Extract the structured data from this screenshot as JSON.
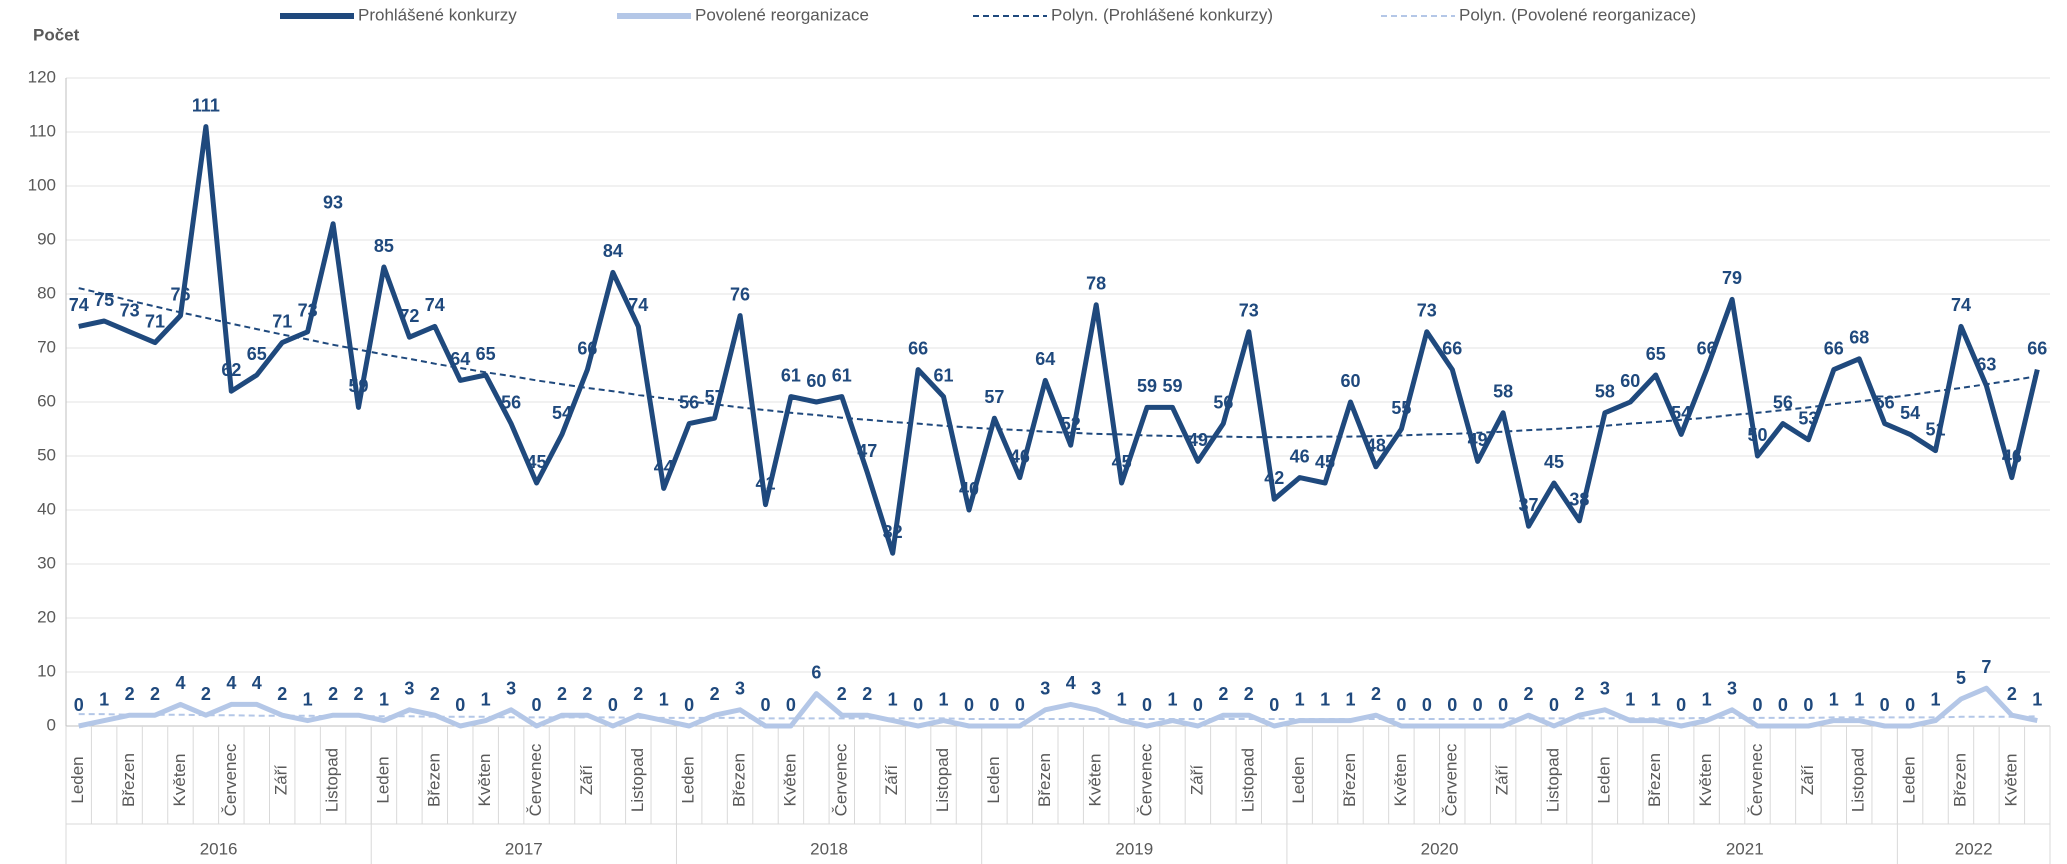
{
  "chart_data": {
    "type": "line",
    "y_label": "Počet",
    "categories": [
      "Leden",
      null,
      "Březen",
      null,
      "Květen",
      null,
      "Červenec",
      null,
      "Září",
      null,
      "Listopad",
      null,
      "Leden",
      null,
      "Březen",
      null,
      "Květen",
      null,
      "Červenec",
      null,
      "Září",
      null,
      "Listopad",
      null,
      "Leden",
      null,
      "Březen",
      null,
      "Květen",
      null,
      "Červenec",
      null,
      "Září",
      null,
      "Listopad",
      null,
      "Leden",
      null,
      "Březen",
      null,
      "Květen",
      null,
      "Červenec",
      null,
      "Září",
      null,
      "Listopad",
      null,
      "Leden",
      null,
      "Březen",
      null,
      "Květen",
      null,
      "Červenec",
      null,
      "Září",
      null,
      "Listopad",
      null,
      "Leden",
      null,
      "Březen",
      null,
      "Květen",
      null,
      "Červenec",
      null,
      "Září",
      null,
      "Listopad",
      null,
      "Leden",
      null,
      "Březen",
      null,
      "Květen",
      null
    ],
    "years": [
      "2016",
      "2017",
      "2018",
      "2019",
      "2020",
      "2021",
      "2022"
    ],
    "series": [
      {
        "name": "Prohlášené konkurzy",
        "color": "#1f497d",
        "dashed": false,
        "data_labels": true,
        "values": [
          74,
          75,
          73,
          71,
          76,
          111,
          62,
          65,
          71,
          73,
          93,
          59,
          85,
          72,
          74,
          64,
          65,
          56,
          45,
          54,
          66,
          84,
          74,
          44,
          56,
          57,
          76,
          41,
          61,
          60,
          61,
          47,
          32,
          66,
          61,
          40,
          57,
          46,
          64,
          52,
          78,
          45,
          59,
          59,
          49,
          56,
          73,
          42,
          46,
          45,
          60,
          48,
          55,
          73,
          66,
          49,
          58,
          37,
          45,
          38,
          58,
          60,
          65,
          54,
          66,
          79,
          50,
          56,
          53,
          66,
          68,
          56,
          54,
          51,
          74,
          63,
          46,
          66
        ]
      },
      {
        "name": "Povolené reorganizace",
        "color": "#b4c7e7",
        "dashed": false,
        "data_labels": true,
        "values": [
          0,
          1,
          2,
          2,
          4,
          2,
          4,
          4,
          2,
          1,
          2,
          2,
          1,
          3,
          2,
          0,
          1,
          3,
          0,
          2,
          2,
          0,
          2,
          1,
          0,
          2,
          3,
          0,
          0,
          6,
          2,
          2,
          1,
          0,
          1,
          0,
          0,
          0,
          3,
          4,
          3,
          1,
          0,
          1,
          0,
          2,
          2,
          0,
          1,
          1,
          1,
          2,
          0,
          0,
          0,
          0,
          0,
          2,
          0,
          2,
          3,
          1,
          1,
          0,
          1,
          3,
          0,
          0,
          0,
          1,
          1,
          0,
          0,
          1,
          5,
          7,
          2,
          1
        ]
      },
      {
        "name": "Polyn. (Prohlášené konkurzy)",
        "color": "#1f497d",
        "dashed": true,
        "data_labels": false,
        "values": [
          81.1,
          80.0,
          78.8,
          77.7,
          76.6,
          75.6,
          74.5,
          73.5,
          72.5,
          71.6,
          70.6,
          69.7,
          68.8,
          68.0,
          67.1,
          66.3,
          65.5,
          64.8,
          64.0,
          63.3,
          62.6,
          62.0,
          61.3,
          60.7,
          60.1,
          59.6,
          59.0,
          58.5,
          58.0,
          57.6,
          57.1,
          56.7,
          56.3,
          56.0,
          55.6,
          55.3,
          55.0,
          54.8,
          54.5,
          54.3,
          54.1,
          54.0,
          53.8,
          53.7,
          53.6,
          53.6,
          53.5,
          53.5,
          53.5,
          53.6,
          53.6,
          53.7,
          53.8,
          54.0,
          54.1,
          54.3,
          54.5,
          54.8,
          55.0,
          55.3,
          55.6,
          56.0,
          56.3,
          56.7,
          57.1,
          57.6,
          58.0,
          58.5,
          59.0,
          59.6,
          60.1,
          60.7,
          61.3,
          62.0,
          62.6,
          63.3,
          64.0,
          64.8
        ]
      },
      {
        "name": "Polyn. (Povolené reorganizace)",
        "color": "#b4c7e7",
        "dashed": true,
        "data_labels": false,
        "values": [
          2.2,
          2.2,
          2.1,
          2.1,
          2.1,
          2.0,
          2.0,
          1.9,
          1.9,
          1.9,
          1.8,
          1.8,
          1.8,
          1.8,
          1.7,
          1.7,
          1.7,
          1.6,
          1.6,
          1.6,
          1.6,
          1.6,
          1.5,
          1.5,
          1.5,
          1.5,
          1.5,
          1.4,
          1.4,
          1.4,
          1.4,
          1.4,
          1.4,
          1.4,
          1.4,
          1.3,
          1.3,
          1.3,
          1.3,
          1.3,
          1.3,
          1.3,
          1.3,
          1.3,
          1.3,
          1.3,
          1.3,
          1.3,
          1.3,
          1.3,
          1.3,
          1.3,
          1.3,
          1.3,
          1.3,
          1.3,
          1.4,
          1.4,
          1.4,
          1.4,
          1.4,
          1.4,
          1.4,
          1.4,
          1.5,
          1.5,
          1.5,
          1.5,
          1.5,
          1.6,
          1.6,
          1.6,
          1.6,
          1.6,
          1.7,
          1.7,
          1.7,
          1.8
        ]
      }
    ],
    "ylim": [
      0,
      120
    ],
    "yticks": [
      0,
      10,
      20,
      30,
      40,
      50,
      60,
      70,
      80,
      90,
      100,
      110,
      120
    ],
    "grid": true,
    "legend": "top"
  }
}
